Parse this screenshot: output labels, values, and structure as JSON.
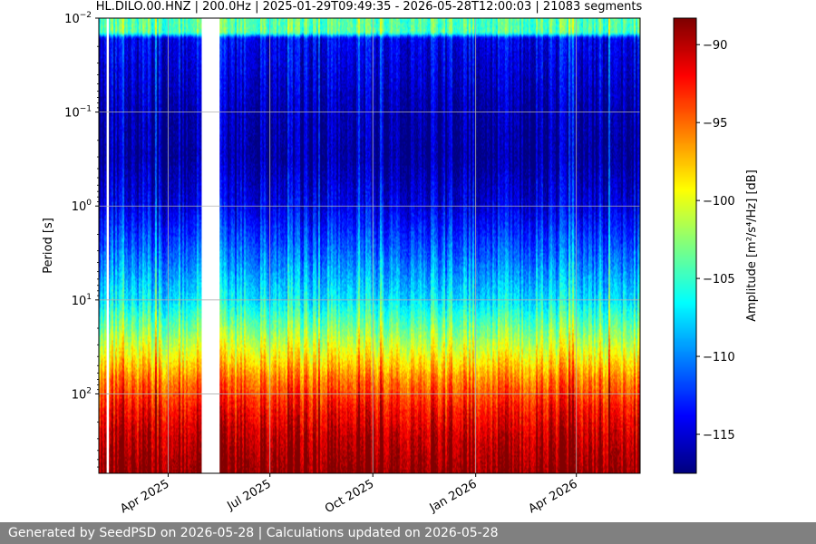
{
  "chart_data": {
    "type": "heatmap",
    "title": "HL.DILO.00.HNZ | 200.0Hz | 2025-01-29T09:49:35 - 2026-05-28T12:00:03 | 21083 segments",
    "ylabel": "Period [s]",
    "y_scale": "log",
    "y_axis_inverted": true,
    "ylim": [
      0.01,
      700
    ],
    "y_ticks": [
      {
        "value": 0.01,
        "base": "10",
        "exp": "−2"
      },
      {
        "value": 0.1,
        "base": "10",
        "exp": "−1"
      },
      {
        "value": 1,
        "base": "10",
        "exp": "0"
      },
      {
        "value": 10,
        "base": "10",
        "exp": "1"
      },
      {
        "value": 100,
        "base": "10",
        "exp": "2"
      }
    ],
    "xlim": [
      "2025-01-29",
      "2026-05-28"
    ],
    "x_ticks": [
      {
        "date": "2025-04-01",
        "label": "Apr 2025"
      },
      {
        "date": "2025-07-01",
        "label": "Jul 2025"
      },
      {
        "date": "2025-10-01",
        "label": "Oct 2025"
      },
      {
        "date": "2026-01-01",
        "label": "Jan 2026"
      },
      {
        "date": "2026-04-01",
        "label": "Apr 2026"
      }
    ],
    "data_gaps": [
      {
        "start": "2025-02-05",
        "end": "2025-02-07"
      },
      {
        "start": "2025-05-01",
        "end": "2025-05-17"
      }
    ],
    "colorbar": {
      "label": "Amplitude [m²/s⁴/Hz] [dB]",
      "colormap": "jet",
      "range": [
        -117.5,
        -88.3
      ],
      "ticks": [
        -90,
        -95,
        -100,
        -105,
        -110,
        -115
      ]
    },
    "grid": true,
    "amplitude_profile_by_period": [
      {
        "period": 0.01,
        "db": -104
      },
      {
        "period": 0.014,
        "db": -104
      },
      {
        "period": 0.016,
        "db": -114
      },
      {
        "period": 0.1,
        "db": -116
      },
      {
        "period": 0.3,
        "db": -116.5
      },
      {
        "period": 1,
        "db": -114.5
      },
      {
        "period": 3,
        "db": -111
      },
      {
        "period": 10,
        "db": -107
      },
      {
        "period": 20,
        "db": -103
      },
      {
        "period": 40,
        "db": -99
      },
      {
        "period": 70,
        "db": -95.5
      },
      {
        "period": 150,
        "db": -92
      },
      {
        "period": 300,
        "db": -90
      },
      {
        "period": 700,
        "db": -88.5
      }
    ]
  },
  "footer": {
    "text": "Generated by SeedPSD on 2026-05-28 | Calculations updated on 2026-05-28"
  }
}
